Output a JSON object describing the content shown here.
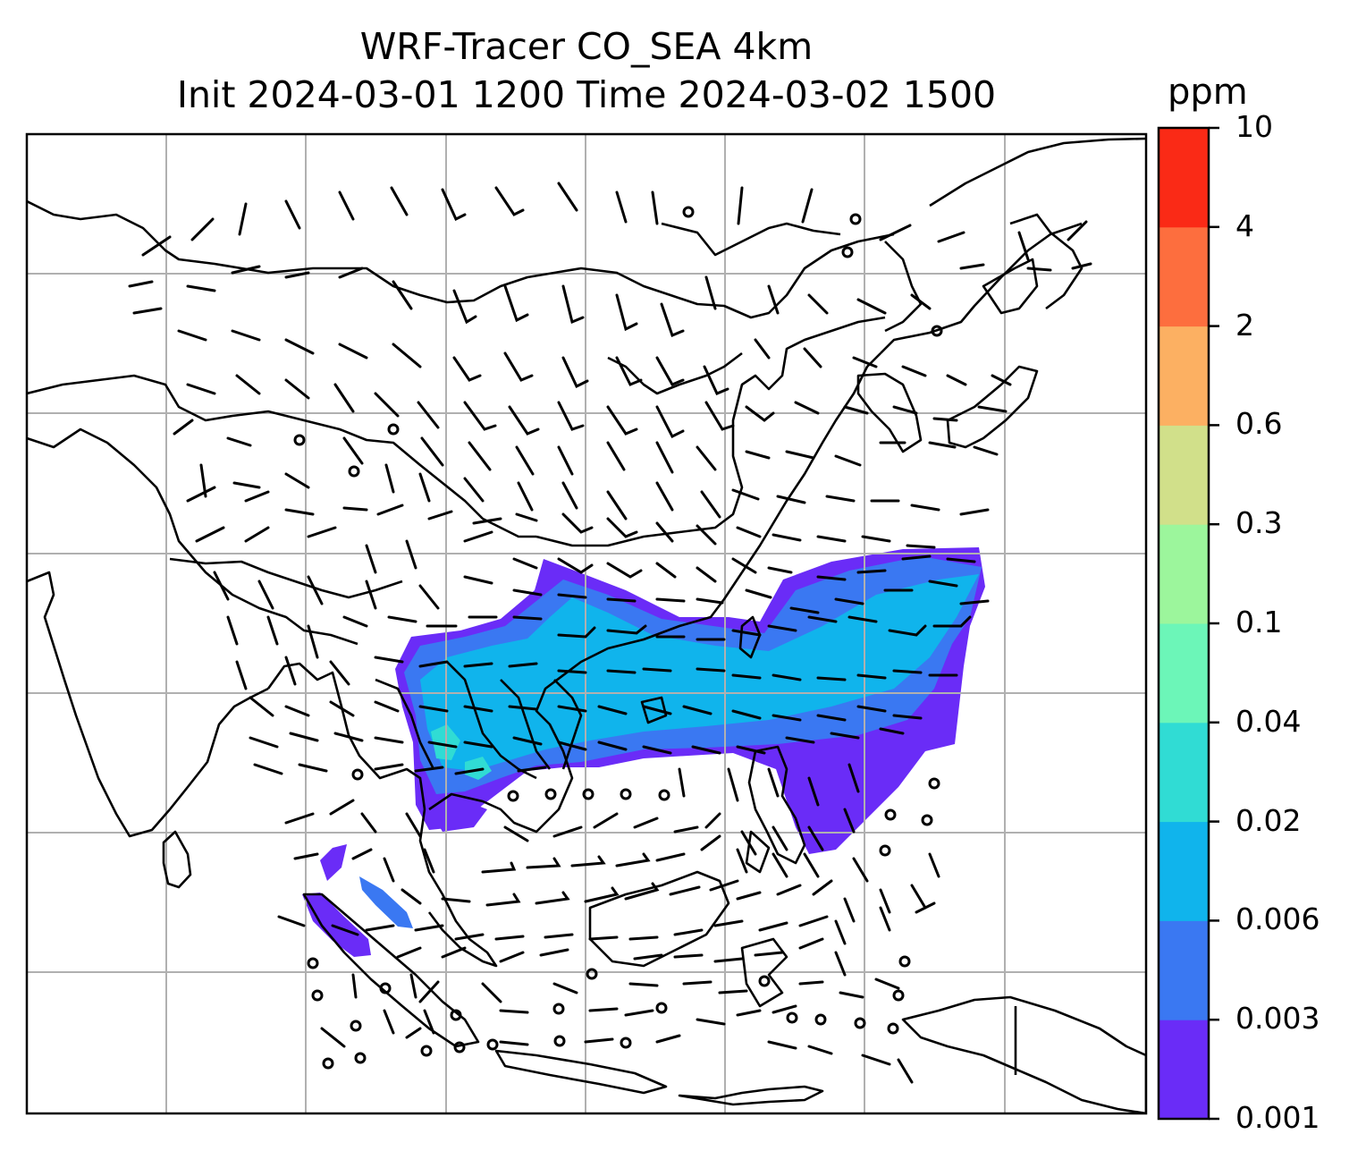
{
  "title": {
    "line1": "WRF-Tracer CO_SEA 4km",
    "line2": "Init 2024-03-01 1200 Time 2024-03-02 1500"
  },
  "colorbar": {
    "unit": "ppm",
    "levels": [
      "0.001",
      "0.003",
      "0.006",
      "0.02",
      "0.04",
      "0.1",
      "0.3",
      "0.6",
      "2",
      "4",
      "10"
    ],
    "colors": [
      "#6a2cf7",
      "#3a78f2",
      "#10b4ec",
      "#30dcd4",
      "#6cf6b8",
      "#9cf69c",
      "#d1e08a",
      "#fcb062",
      "#fd6e3e",
      "#fa2a16"
    ]
  },
  "map": {
    "gridlines": true,
    "layers": [
      "coastlines",
      "country-borders",
      "gridlines",
      "co-tracer-contours",
      "wind-barbs"
    ],
    "plume_color_levels": [
      "0.001",
      "0.003",
      "0.006",
      "0.02"
    ]
  }
}
